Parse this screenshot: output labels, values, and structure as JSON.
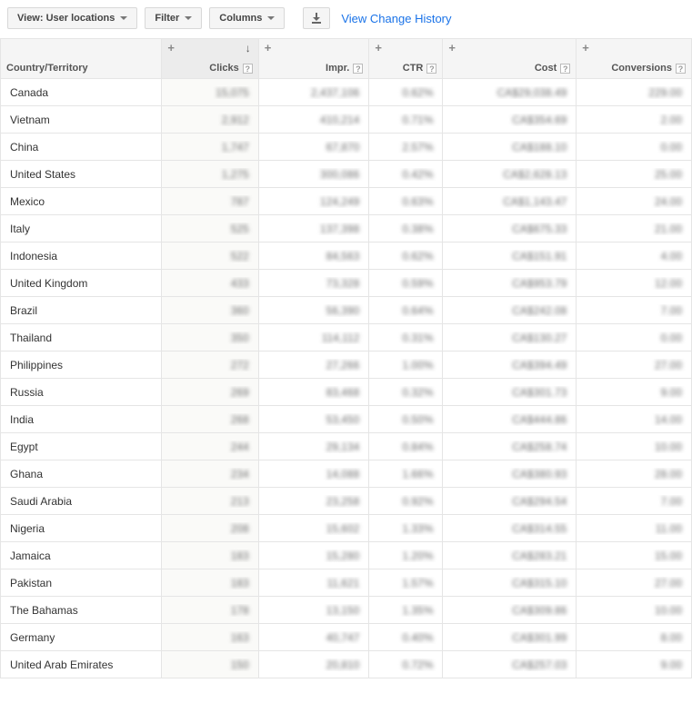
{
  "toolbar": {
    "view_label": "View: User locations",
    "filter_label": "Filter",
    "columns_label": "Columns",
    "history_link": "View Change History"
  },
  "columns": [
    {
      "key": "country",
      "label": "Country/Territory",
      "align": "left",
      "help": false,
      "add": false,
      "sorted": false
    },
    {
      "key": "clicks",
      "label": "Clicks",
      "align": "right",
      "help": true,
      "add": true,
      "sorted": true
    },
    {
      "key": "impr",
      "label": "Impr.",
      "align": "right",
      "help": true,
      "add": true,
      "sorted": false
    },
    {
      "key": "ctr",
      "label": "CTR",
      "align": "right",
      "help": true,
      "add": true,
      "sorted": false
    },
    {
      "key": "cost",
      "label": "Cost",
      "align": "right",
      "help": true,
      "add": true,
      "sorted": false
    },
    {
      "key": "conv",
      "label": "Conversions",
      "align": "right",
      "help": true,
      "add": true,
      "sorted": false
    }
  ],
  "help_glyph": "?",
  "sort_glyph": "↓",
  "rows": [
    {
      "country": "Canada",
      "clicks": "15,075",
      "impr": "2,437,106",
      "ctr": "0.62%",
      "cost": "CA$29,038.49",
      "conv": "229.00"
    },
    {
      "country": "Vietnam",
      "clicks": "2,912",
      "impr": "410,214",
      "ctr": "0.71%",
      "cost": "CA$354.69",
      "conv": "2.00"
    },
    {
      "country": "China",
      "clicks": "1,747",
      "impr": "67,870",
      "ctr": "2.57%",
      "cost": "CA$188.10",
      "conv": "0.00"
    },
    {
      "country": "United States",
      "clicks": "1,275",
      "impr": "300,086",
      "ctr": "0.42%",
      "cost": "CA$2,628.13",
      "conv": "25.00"
    },
    {
      "country": "Mexico",
      "clicks": "787",
      "impr": "124,249",
      "ctr": "0.63%",
      "cost": "CA$1,143.47",
      "conv": "24.00"
    },
    {
      "country": "Italy",
      "clicks": "525",
      "impr": "137,398",
      "ctr": "0.38%",
      "cost": "CA$675.33",
      "conv": "21.00"
    },
    {
      "country": "Indonesia",
      "clicks": "522",
      "impr": "84,563",
      "ctr": "0.62%",
      "cost": "CA$151.91",
      "conv": "4.00"
    },
    {
      "country": "United Kingdom",
      "clicks": "433",
      "impr": "73,328",
      "ctr": "0.59%",
      "cost": "CA$953.79",
      "conv": "12.00"
    },
    {
      "country": "Brazil",
      "clicks": "360",
      "impr": "56,390",
      "ctr": "0.64%",
      "cost": "CA$242.08",
      "conv": "7.00"
    },
    {
      "country": "Thailand",
      "clicks": "350",
      "impr": "114,112",
      "ctr": "0.31%",
      "cost": "CA$130.27",
      "conv": "0.00"
    },
    {
      "country": "Philippines",
      "clicks": "272",
      "impr": "27,266",
      "ctr": "1.00%",
      "cost": "CA$394.49",
      "conv": "27.00"
    },
    {
      "country": "Russia",
      "clicks": "269",
      "impr": "83,468",
      "ctr": "0.32%",
      "cost": "CA$301.73",
      "conv": "9.00"
    },
    {
      "country": "India",
      "clicks": "268",
      "impr": "53,450",
      "ctr": "0.50%",
      "cost": "CA$444.86",
      "conv": "14.00"
    },
    {
      "country": "Egypt",
      "clicks": "244",
      "impr": "29,134",
      "ctr": "0.84%",
      "cost": "CA$258.74",
      "conv": "10.00"
    },
    {
      "country": "Ghana",
      "clicks": "234",
      "impr": "14,088",
      "ctr": "1.66%",
      "cost": "CA$380.93",
      "conv": "28.00"
    },
    {
      "country": "Saudi Arabia",
      "clicks": "213",
      "impr": "23,258",
      "ctr": "0.92%",
      "cost": "CA$294.54",
      "conv": "7.00"
    },
    {
      "country": "Nigeria",
      "clicks": "208",
      "impr": "15,602",
      "ctr": "1.33%",
      "cost": "CA$314.55",
      "conv": "11.00"
    },
    {
      "country": "Jamaica",
      "clicks": "183",
      "impr": "15,280",
      "ctr": "1.20%",
      "cost": "CA$283.21",
      "conv": "15.00"
    },
    {
      "country": "Pakistan",
      "clicks": "183",
      "impr": "11,621",
      "ctr": "1.57%",
      "cost": "CA$315.10",
      "conv": "27.00"
    },
    {
      "country": "The Bahamas",
      "clicks": "178",
      "impr": "13,150",
      "ctr": "1.35%",
      "cost": "CA$309.86",
      "conv": "10.00"
    },
    {
      "country": "Germany",
      "clicks": "163",
      "impr": "40,747",
      "ctr": "0.40%",
      "cost": "CA$301.99",
      "conv": "8.00"
    },
    {
      "country": "United Arab Emirates",
      "clicks": "150",
      "impr": "20,810",
      "ctr": "0.72%",
      "cost": "CA$257.03",
      "conv": "9.00"
    }
  ]
}
